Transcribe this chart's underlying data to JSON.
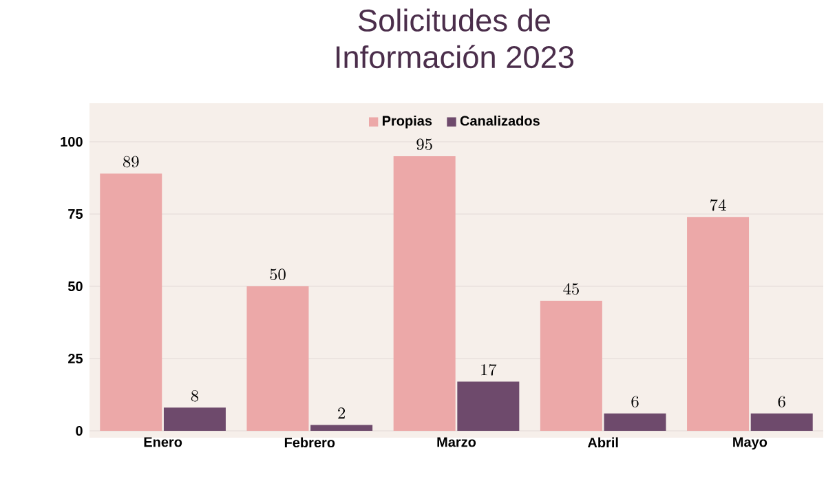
{
  "chart_data": {
    "type": "bar",
    "title": "Solicitudes de\nInformación 2023",
    "categories": [
      "Enero",
      "Febrero",
      "Marzo",
      "Abril",
      "Mayo"
    ],
    "series": [
      {
        "name": "Propias",
        "color": "#eca8a8",
        "values": [
          89,
          50,
          95,
          45,
          74
        ]
      },
      {
        "name": "Canalizados",
        "color": "#6e4a6c",
        "values": [
          8,
          2,
          17,
          6,
          6
        ]
      }
    ],
    "ylim": [
      0,
      100
    ],
    "yticks": [
      0,
      25,
      50,
      75,
      100
    ],
    "grid": "y",
    "legend": "top",
    "data_labels": true
  }
}
